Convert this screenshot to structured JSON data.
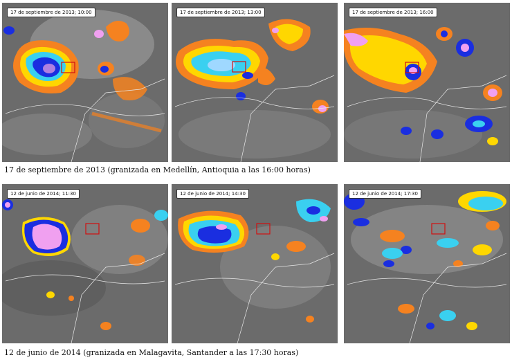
{
  "rows": [
    {
      "caption": "17 de septiembre de 2013 (granizada en Medellín, Antioquia a las 16:00 horas)",
      "panels": [
        {
          "timestamp": "17 de septiembre de 2013; 10:00"
        },
        {
          "timestamp": "17 de septiembre de 2013; 13:00"
        },
        {
          "timestamp": "17 de septiembre de 2013; 16:00"
        }
      ]
    },
    {
      "caption": "12 de junio de 2014 (granizada en Malagavita, Santander a las 17:30 horas)",
      "panels": [
        {
          "timestamp": "12 de junio de 2014; 11:30"
        },
        {
          "timestamp": "12 de junio de 2014; 14:30"
        },
        {
          "timestamp": "12 de junio de 2014; 17:30"
        }
      ]
    }
  ],
  "colors": {
    "background_gray": "#6a6a6a",
    "cloud_gray": "#9a9a9a",
    "orange": "#f58220",
    "yellow": "#ffd700",
    "cyan": "#3ad0f0",
    "blue": "#1a2ee0",
    "pink": "#f0a0f0",
    "target_box": "#d01010",
    "borders": "#e8e8e8"
  }
}
